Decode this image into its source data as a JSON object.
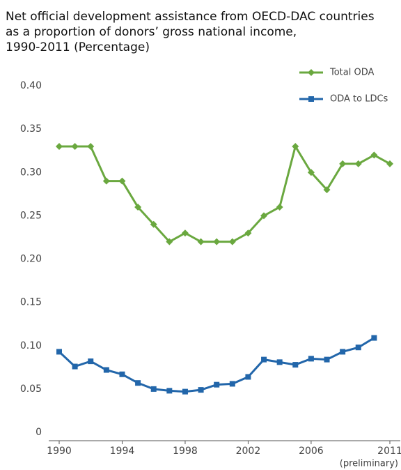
{
  "chart_data": {
    "type": "line",
    "title": [
      "Net official development assistance from OECD-DAC countries",
      "as a proportion of donors’ gross national income,",
      "1990-2011 (Percentage)"
    ],
    "x": [
      1990,
      1991,
      1992,
      1993,
      1994,
      1995,
      1996,
      1997,
      1998,
      1999,
      2000,
      2001,
      2002,
      2003,
      2004,
      2005,
      2006,
      2007,
      2008,
      2009,
      2010,
      2011
    ],
    "series": [
      {
        "name": "Total ODA",
        "color": "#6aa83f",
        "marker": "diamond",
        "values": [
          0.33,
          0.33,
          0.33,
          0.29,
          0.29,
          0.26,
          0.24,
          0.22,
          0.23,
          0.22,
          0.22,
          0.22,
          0.23,
          0.25,
          0.26,
          0.33,
          0.3,
          0.28,
          0.31,
          0.31,
          0.32,
          0.31
        ]
      },
      {
        "name": "ODA to LDCs",
        "color": "#2266aa",
        "marker": "square",
        "values": [
          0.093,
          0.076,
          0.082,
          0.072,
          0.067,
          0.057,
          0.05,
          0.048,
          0.047,
          0.049,
          0.055,
          0.056,
          0.064,
          0.084,
          0.081,
          0.078,
          0.085,
          0.084,
          0.093,
          0.098,
          0.109,
          null
        ]
      }
    ],
    "xlim": [
      1990,
      2011
    ],
    "xticks": [
      1990,
      1994,
      1998,
      2002,
      2006,
      2011
    ],
    "xtick_note": "(preliminary)",
    "ylim": [
      0,
      0.4
    ],
    "yticks": [
      0,
      0.05,
      {
        "value": 0.1,
        "label": "0.10"
      },
      0.15,
      {
        "value": 0.2,
        "label": "0.20"
      },
      0.25,
      {
        "value": 0.3,
        "label": "0.30"
      },
      0.35,
      {
        "value": 0.4,
        "label": "0.40"
      }
    ],
    "legend": "top-right"
  }
}
